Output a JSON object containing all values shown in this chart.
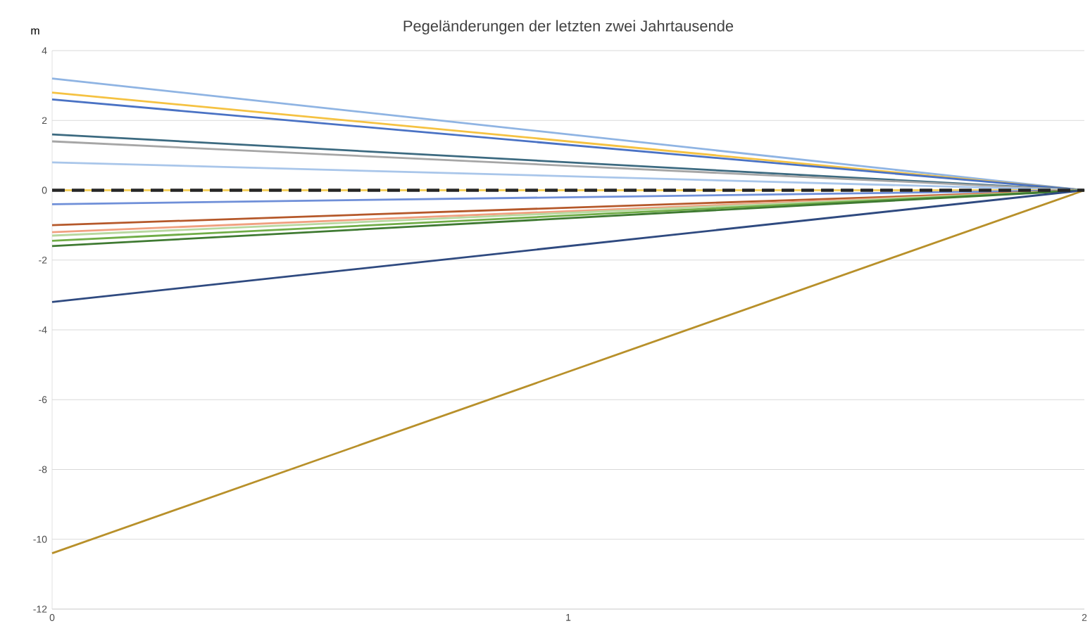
{
  "chart_data": {
    "type": "line",
    "title": "Pegeländerungen  der letzten zwei Jahrtausende",
    "ylabel": "m",
    "x": [
      0,
      2
    ],
    "xlim": [
      0,
      2
    ],
    "xticks": [
      0,
      1,
      2
    ],
    "ylim": [
      -12,
      4
    ],
    "yticks": [
      -12,
      -10,
      -8,
      -6,
      -4,
      -2,
      0,
      2,
      4
    ],
    "grid": "y",
    "marker": "none",
    "series": [
      {
        "color": "#8fb4e3",
        "values": [
          3.2,
          0
        ]
      },
      {
        "color": "#f5c242",
        "values": [
          2.8,
          0
        ]
      },
      {
        "color": "#4a72c4",
        "values": [
          2.6,
          0
        ]
      },
      {
        "color": "#3c6a80",
        "values": [
          1.6,
          0
        ]
      },
      {
        "color": "#a6a6a6",
        "values": [
          1.4,
          0
        ]
      },
      {
        "color": "#a9c6ea",
        "values": [
          0.8,
          0
        ]
      },
      {
        "color": "#f5d060",
        "values": [
          0,
          0
        ]
      },
      {
        "color": "#6f8fd8",
        "values": [
          -0.4,
          0
        ]
      },
      {
        "color": "#b5582a",
        "values": [
          -1.0,
          0
        ]
      },
      {
        "color": "#f0a080",
        "values": [
          -1.2,
          0
        ]
      },
      {
        "color": "#b8d8a0",
        "values": [
          -1.3,
          0
        ]
      },
      {
        "color": "#70ad47",
        "values": [
          -1.45,
          0
        ]
      },
      {
        "color": "#3f7a32",
        "values": [
          -1.6,
          0
        ]
      },
      {
        "color": "#2f4a80",
        "values": [
          -3.2,
          0
        ]
      },
      {
        "color": "#b8902a",
        "values": [
          -10.4,
          0
        ]
      },
      {
        "color": "#262626",
        "values": [
          0,
          0
        ],
        "line_style": "dashed"
      }
    ]
  }
}
